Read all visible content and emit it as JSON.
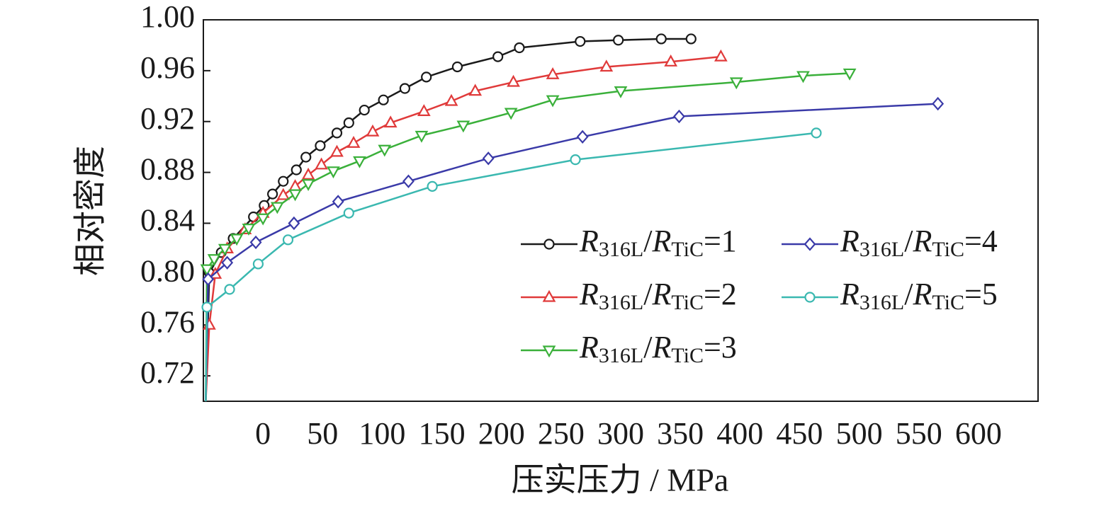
{
  "chart_data": {
    "type": "line",
    "xlabel": "压实压力 / MPa",
    "ylabel": "相对密度",
    "xlim": [
      -50,
      650
    ],
    "xticks": [
      0,
      50,
      100,
      150,
      200,
      250,
      300,
      350,
      400,
      450,
      500,
      550,
      600
    ],
    "ylim": [
      0.7,
      1.0
    ],
    "yticks": [
      {
        "value": 0.72,
        "label": "0.72"
      },
      {
        "value": 0.76,
        "label": "0.76"
      },
      {
        "value": 0.8,
        "label": "0.80"
      },
      {
        "value": 0.84,
        "label": "0.84"
      },
      {
        "value": 0.88,
        "label": "0.88"
      },
      {
        "value": 0.92,
        "label": "0.92"
      },
      {
        "value": 0.96,
        "label": "0.96"
      },
      {
        "value": 1.0,
        "label": "1.00"
      }
    ],
    "series": [
      {
        "name": "R316L/RTiC=1",
        "color": "#1a1a1a",
        "marker": "circle",
        "x": [
          -48,
          -45,
          -35,
          -25,
          -8,
          1,
          8,
          17,
          28,
          36,
          48,
          62,
          72,
          85,
          101,
          119,
          137,
          163,
          197,
          215,
          266,
          298,
          334,
          359
        ],
        "values": [
          0.7,
          0.801,
          0.817,
          0.828,
          0.845,
          0.854,
          0.863,
          0.873,
          0.882,
          0.892,
          0.901,
          0.911,
          0.919,
          0.929,
          0.937,
          0.946,
          0.955,
          0.963,
          0.971,
          0.978,
          0.983,
          0.984,
          0.985,
          0.985
        ]
      },
      {
        "name": "R316L/RTiC=2",
        "color": "#e03a3a",
        "marker": "triangle-up",
        "x": [
          -48,
          -45,
          -40,
          -30,
          -15,
          0,
          17,
          27,
          38,
          49,
          62,
          76,
          92,
          107,
          135,
          158,
          178,
          210,
          243,
          288,
          342,
          384
        ],
        "values": [
          0.7,
          0.76,
          0.8,
          0.82,
          0.835,
          0.848,
          0.862,
          0.869,
          0.878,
          0.886,
          0.896,
          0.903,
          0.912,
          0.919,
          0.928,
          0.936,
          0.944,
          0.951,
          0.957,
          0.963,
          0.967,
          0.971
        ]
      },
      {
        "name": "R316L/RTiC=3",
        "color": "#3ab03a",
        "marker": "triangle-down",
        "x": [
          -48,
          -47,
          -41,
          -32,
          -22,
          -12,
          0,
          12,
          27,
          38,
          59,
          81,
          102,
          133,
          168,
          208,
          243,
          300,
          397,
          453,
          492
        ],
        "values": [
          0.7,
          0.804,
          0.812,
          0.82,
          0.828,
          0.836,
          0.844,
          0.853,
          0.863,
          0.871,
          0.881,
          0.889,
          0.898,
          0.909,
          0.917,
          0.927,
          0.937,
          0.944,
          0.951,
          0.956,
          0.958
        ]
      },
      {
        "name": "R316L/RTiC=4",
        "color": "#3a3aa8",
        "marker": "diamond",
        "x": [
          -48,
          -46,
          -30,
          -6,
          26,
          63,
          122,
          189,
          268,
          349,
          566
        ],
        "values": [
          0.7,
          0.796,
          0.809,
          0.825,
          0.84,
          0.857,
          0.873,
          0.891,
          0.908,
          0.924,
          0.934
        ]
      },
      {
        "name": "R316L/RTiC=5",
        "color": "#3ab8b0",
        "marker": "circle",
        "x": [
          -48,
          -47,
          -28,
          -4,
          21,
          72,
          142,
          262,
          464
        ],
        "values": [
          0.7,
          0.774,
          0.788,
          0.808,
          0.827,
          0.848,
          0.869,
          0.89,
          0.911
        ]
      }
    ]
  }
}
